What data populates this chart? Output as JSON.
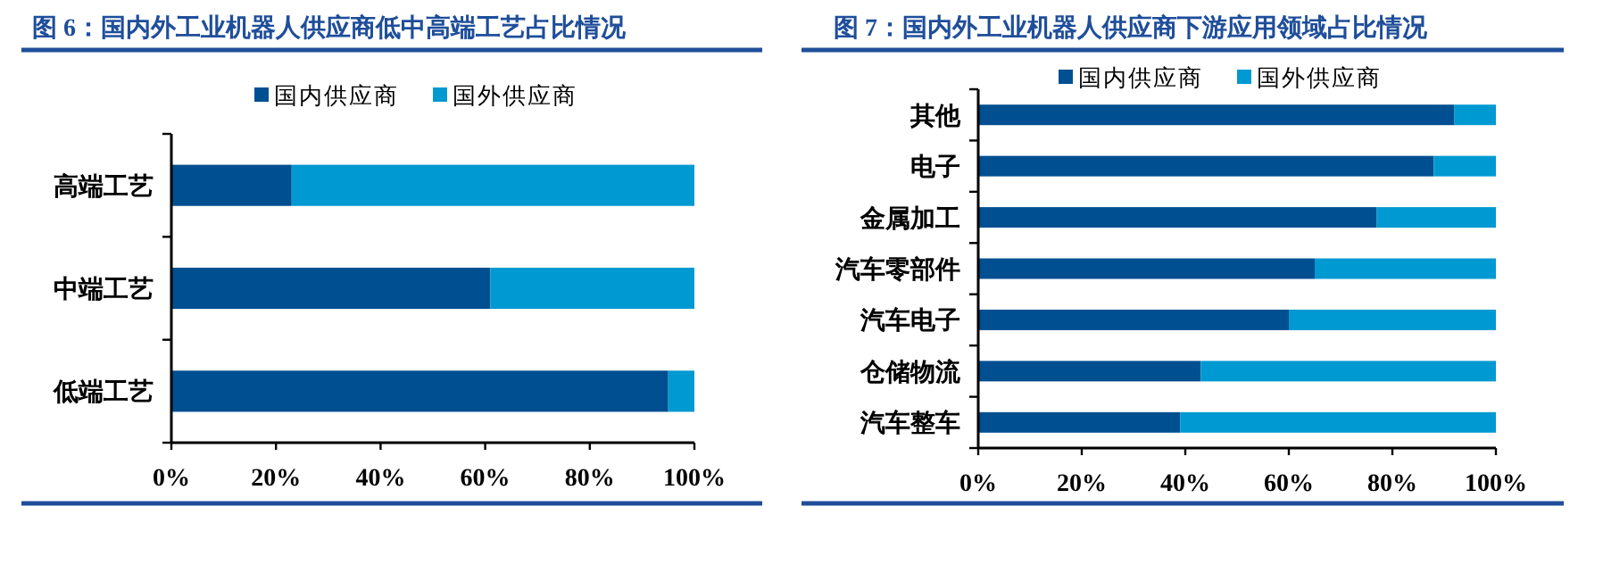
{
  "chart_data": [
    {
      "type": "bar",
      "orientation": "horizontal",
      "stacked": true,
      "title": "图 6：国内外工业机器人供应商低中高端工艺占比情况",
      "categories": [
        "高端工艺",
        "中端工艺",
        "低端工艺"
      ],
      "series": [
        {
          "name": "国内供应商",
          "color": "#004f91",
          "values": [
            23,
            61,
            95
          ]
        },
        {
          "name": "国外供应商",
          "color": "#0099d1",
          "values": [
            77,
            39,
            5
          ]
        }
      ],
      "xlim": [
        0,
        100
      ],
      "xticks": [
        {
          "value": 0,
          "label": "0%"
        },
        {
          "value": 20,
          "label": "20%"
        },
        {
          "value": 40,
          "label": "40%"
        },
        {
          "value": 60,
          "label": "60%"
        },
        {
          "value": 80,
          "label": "80%"
        },
        {
          "value": 100,
          "label": "100%"
        }
      ],
      "legend": "top",
      "grid": false
    },
    {
      "type": "bar",
      "orientation": "horizontal",
      "stacked": true,
      "title": "图 7：国内外工业机器人供应商下游应用领域占比情况",
      "categories": [
        "其他",
        "电子",
        "金属加工",
        "汽车零部件",
        "汽车电子",
        "仓储物流",
        "汽车整车"
      ],
      "series": [
        {
          "name": "国内供应商",
          "color": "#004f91",
          "values": [
            92,
            88,
            77,
            65,
            60,
            43,
            39
          ]
        },
        {
          "name": "国外供应商",
          "color": "#0099d1",
          "values": [
            8,
            12,
            23,
            35,
            40,
            57,
            61
          ]
        }
      ],
      "xlim": [
        0,
        100
      ],
      "xticks": [
        {
          "value": 0,
          "label": "0%"
        },
        {
          "value": 20,
          "label": "20%"
        },
        {
          "value": 40,
          "label": "40%"
        },
        {
          "value": 60,
          "label": "60%"
        },
        {
          "value": 80,
          "label": "80%"
        },
        {
          "value": 100,
          "label": "100%"
        }
      ],
      "legend": "top",
      "grid": false
    }
  ]
}
